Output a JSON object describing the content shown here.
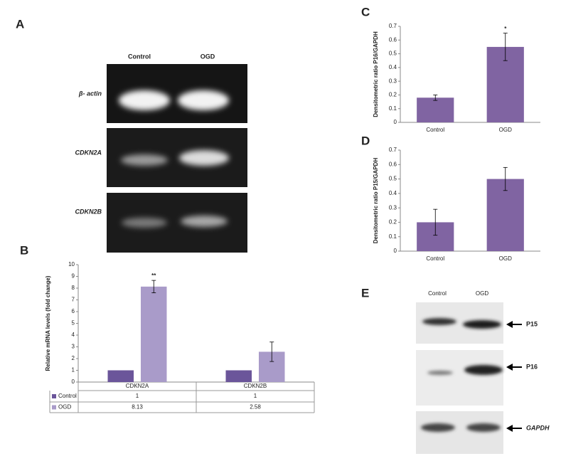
{
  "panel_labels": [
    "A",
    "B",
    "C",
    "D",
    "E"
  ],
  "gel": {
    "columns": [
      "Control",
      "OGD"
    ],
    "rows": [
      "β- actin",
      "CDKN2A",
      "CDKN2B"
    ]
  },
  "blot": {
    "columns": [
      "Control",
      "OGD"
    ],
    "rows": [
      "P15",
      "P16",
      "GAPDH"
    ]
  },
  "chart_data": [
    {
      "type": "bar",
      "ylabel": "Relative mRNA levels (fold change)",
      "categories": [
        "CDKN2A",
        "CDKN2B"
      ],
      "series": [
        {
          "name": "Control",
          "color": "#6b559a",
          "values": [
            1,
            1
          ]
        },
        {
          "name": "OGD",
          "color": "#a99bc9",
          "values": [
            8.13,
            2.58
          ],
          "errors": [
            0.53,
            0.83
          ],
          "annotations": [
            "**",
            null
          ]
        }
      ],
      "ylim": [
        0,
        10
      ],
      "yticks": [
        0,
        1,
        2,
        3,
        4,
        5,
        6,
        7,
        8,
        9,
        10
      ],
      "data_table": true
    },
    {
      "type": "bar",
      "ylabel": "Densitometric ratio P16/GAPDH",
      "categories": [
        "Control",
        "OGD"
      ],
      "values": [
        0.18,
        0.55
      ],
      "errors": [
        0.02,
        0.1
      ],
      "annotations": [
        null,
        "*"
      ],
      "color": "#8064a2",
      "ylim": [
        0,
        0.7
      ],
      "yticks": [
        0,
        0.1,
        0.2,
        0.3,
        0.4,
        0.5,
        0.6,
        0.7
      ]
    },
    {
      "type": "bar",
      "ylabel": "Densitometric ratio P15/GAPDH",
      "categories": [
        "Control",
        "OGD"
      ],
      "values": [
        0.2,
        0.5
      ],
      "errors": [
        0.09,
        0.08
      ],
      "color": "#8064a2",
      "ylim": [
        0,
        0.7
      ],
      "yticks": [
        0,
        0.1,
        0.2,
        0.3,
        0.4,
        0.5,
        0.6,
        0.7
      ]
    }
  ]
}
